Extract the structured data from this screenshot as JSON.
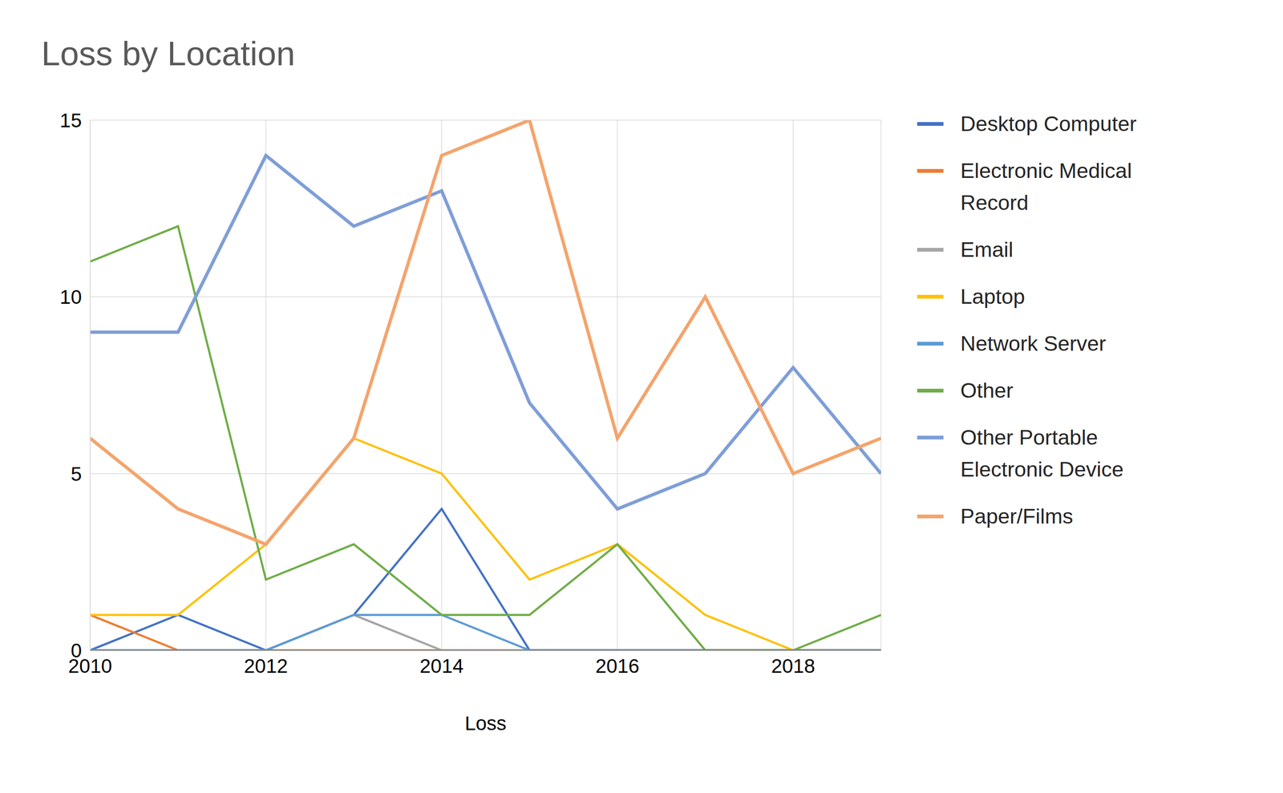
{
  "chart_data": {
    "type": "line",
    "title": "Loss by Location",
    "x_label": "Loss",
    "x": [
      2010,
      2011,
      2012,
      2013,
      2014,
      2015,
      2016,
      2017,
      2018,
      2019
    ],
    "xlim": [
      2010,
      2019
    ],
    "xticks": [
      2010,
      2012,
      2014,
      2016,
      2018
    ],
    "ylim": [
      0,
      15
    ],
    "yticks": [
      0,
      5,
      10,
      15
    ],
    "grid": true,
    "legend": "right",
    "series": [
      {
        "name": "Desktop Computer",
        "color": "#4472c4",
        "values": [
          0,
          1,
          0,
          1,
          4,
          0,
          0,
          0,
          0,
          0
        ]
      },
      {
        "name": "Electronic Medical Record",
        "color": "#ed7d31",
        "values": [
          1,
          0,
          0,
          0,
          0,
          0,
          0,
          0,
          0,
          0
        ]
      },
      {
        "name": "Email",
        "color": "#a5a5a5",
        "values": [
          0,
          0,
          0,
          1,
          0,
          0,
          0,
          0,
          0,
          0
        ]
      },
      {
        "name": "Laptop",
        "color": "#ffc000",
        "values": [
          1,
          1,
          3,
          6,
          5,
          2,
          3,
          1,
          0,
          0
        ]
      },
      {
        "name": "Network Server",
        "color": "#5b9bd5",
        "values": [
          0,
          0,
          0,
          1,
          1,
          0,
          0,
          0,
          0,
          0
        ]
      },
      {
        "name": "Other",
        "color": "#70ad47",
        "values": [
          11,
          12,
          2,
          3,
          1,
          1,
          3,
          0,
          0,
          1
        ]
      },
      {
        "name": "Other Portable Electronic Device",
        "color": "#7f9ed8",
        "values": [
          9,
          9,
          14,
          12,
          13,
          7,
          4,
          5,
          8,
          5
        ]
      },
      {
        "name": "Paper/Films",
        "color": "#f4a46c",
        "values": [
          6,
          4,
          3,
          6,
          14,
          15,
          6,
          10,
          5,
          6
        ]
      }
    ]
  }
}
